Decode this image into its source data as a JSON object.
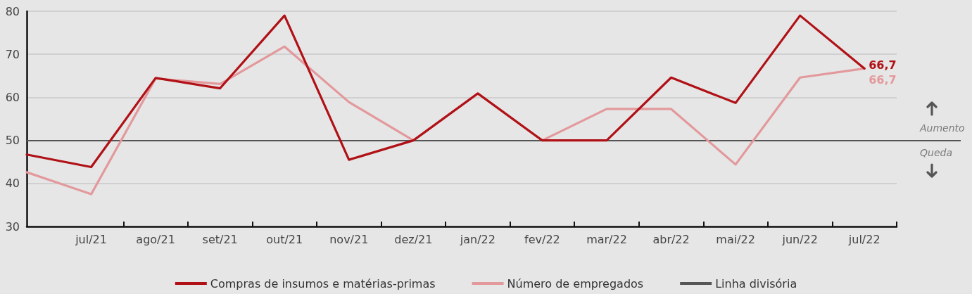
{
  "chart_data": {
    "type": "line",
    "categories": [
      null,
      "jul/21",
      "ago/21",
      "set/21",
      "out/21",
      "nov/21",
      "dez/21",
      "jan/22",
      "fev/22",
      "mar/22",
      "abr/22",
      "mai/22",
      "jun/22",
      "jul/22"
    ],
    "series": [
      {
        "name": "Compras de insumos e matérias-primas",
        "color": "#b01116",
        "values": [
          46.7,
          43.8,
          64.5,
          62.1,
          79.0,
          45.5,
          50,
          60.9,
          50,
          50,
          64.6,
          58.7,
          79.0,
          66.7
        ],
        "value_labels": [
          null,
          null,
          null,
          null,
          null,
          null,
          null,
          null,
          null,
          null,
          null,
          null,
          null,
          "66,7"
        ]
      },
      {
        "name": "Número de empregados",
        "color": "#e3999c",
        "values": [
          42.6,
          37.5,
          64.4,
          63.1,
          71.8,
          58.9,
          50,
          null,
          50,
          57.3,
          57.3,
          44.4,
          64.6,
          66.7
        ],
        "value_labels": [
          null,
          null,
          null,
          null,
          null,
          null,
          null,
          null,
          null,
          null,
          null,
          null,
          null,
          "66,7"
        ]
      }
    ],
    "ylim": [
      30,
      80
    ],
    "yticks": [
      30,
      40,
      50,
      60,
      70,
      80
    ],
    "grid": "y",
    "legend": "bottom",
    "marker": "none",
    "line_style": "solid",
    "ref_lines": [
      {
        "axis": "y",
        "value": 50,
        "label": "Linha divisória",
        "color": "#555555"
      }
    ],
    "annotations": [
      "Aumento",
      "Queda"
    ]
  }
}
